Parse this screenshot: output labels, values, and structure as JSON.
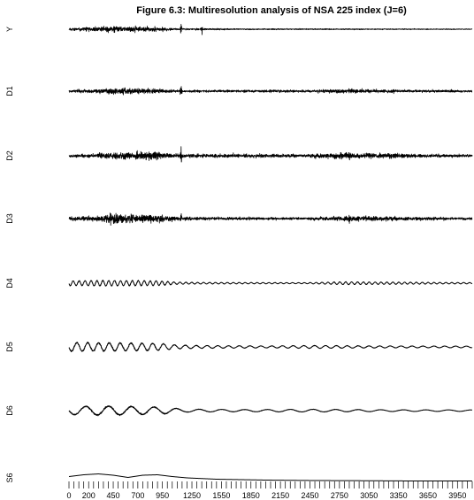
{
  "chart_data": {
    "type": "line",
    "title": "Figure 6.3: Multiresolution analysis of NSA 225 index (J=6)",
    "xlabel": "",
    "ylabel": "",
    "xlim": [
      0,
      4100
    ],
    "x_tick_labels": [
      0,
      200,
      450,
      700,
      950,
      1250,
      1550,
      1850,
      2150,
      2450,
      2750,
      3050,
      3350,
      3650,
      3950
    ],
    "minor_tick_step": 50,
    "series": [
      {
        "name": "Y",
        "kind": "noise",
        "volatility": [
          [
            0,
            0.6
          ],
          [
            200,
            1.0
          ],
          [
            500,
            1.6
          ],
          [
            900,
            1.0
          ],
          [
            1100,
            0.35
          ],
          [
            1300,
            0.5
          ],
          [
            1800,
            0.3
          ],
          [
            2500,
            0.3
          ],
          [
            3000,
            0.25
          ],
          [
            4100,
            0.2
          ]
        ],
        "bursts": [
          [
            1140,
            2.0
          ],
          [
            1350,
            1.5
          ]
        ]
      },
      {
        "name": "D1",
        "kind": "noise",
        "volatility": [
          [
            0,
            0.6
          ],
          [
            250,
            0.9
          ],
          [
            500,
            1.6
          ],
          [
            900,
            1.2
          ],
          [
            1100,
            0.6
          ],
          [
            2400,
            0.6
          ],
          [
            2800,
            1.0
          ],
          [
            3200,
            0.8
          ],
          [
            3600,
            0.6
          ],
          [
            4100,
            0.55
          ]
        ],
        "bursts": [
          [
            1140,
            3.0
          ],
          [
            2850,
            1.6
          ],
          [
            3300,
            1.2
          ]
        ]
      },
      {
        "name": "D2",
        "kind": "noise",
        "volatility": [
          [
            0,
            0.7
          ],
          [
            250,
            1.0
          ],
          [
            500,
            2.2
          ],
          [
            900,
            1.8
          ],
          [
            1100,
            0.8
          ],
          [
            1200,
            1.0
          ],
          [
            2400,
            0.8
          ],
          [
            2800,
            1.6
          ],
          [
            3300,
            1.2
          ],
          [
            3600,
            0.9
          ],
          [
            4100,
            0.7
          ]
        ],
        "bursts": [
          [
            1140,
            2.8
          ],
          [
            2850,
            2.0
          ]
        ]
      },
      {
        "name": "D3",
        "kind": "noise",
        "volatility": [
          [
            0,
            0.9
          ],
          [
            300,
            1.4
          ],
          [
            450,
            2.6
          ],
          [
            900,
            1.8
          ],
          [
            1100,
            1.0
          ],
          [
            1300,
            0.8
          ],
          [
            2400,
            0.6
          ],
          [
            2800,
            1.4
          ],
          [
            3300,
            1.0
          ],
          [
            4100,
            0.6
          ]
        ],
        "bursts": [
          [
            1140,
            2.4
          ],
          [
            2850,
            1.6
          ]
        ]
      },
      {
        "name": "D4",
        "kind": "wave",
        "period": 60,
        "amplitude": [
          [
            0,
            2.6
          ],
          [
            400,
            3.0
          ],
          [
            900,
            2.6
          ],
          [
            1100,
            1.2
          ],
          [
            1300,
            0.9
          ],
          [
            2400,
            0.6
          ],
          [
            2800,
            1.5
          ],
          [
            3300,
            1.2
          ],
          [
            3700,
            0.9
          ],
          [
            4100,
            0.7
          ]
        ]
      },
      {
        "name": "D5",
        "kind": "wave",
        "period": 110,
        "amplitude": [
          [
            0,
            4.8
          ],
          [
            400,
            4.5
          ],
          [
            900,
            4.0
          ],
          [
            1100,
            2.0
          ],
          [
            1400,
            1.5
          ],
          [
            2000,
            1.1
          ],
          [
            2500,
            1.6
          ],
          [
            3000,
            1.2
          ],
          [
            3500,
            1.0
          ],
          [
            4100,
            0.9
          ]
        ]
      },
      {
        "name": "D6",
        "kind": "wave",
        "period": 230,
        "amplitude": [
          [
            0,
            4.5
          ],
          [
            400,
            5.0
          ],
          [
            900,
            4.0
          ],
          [
            1200,
            1.6
          ],
          [
            1800,
            1.2
          ],
          [
            2500,
            1.5
          ],
          [
            3200,
            1.0
          ],
          [
            4100,
            0.8
          ]
        ]
      },
      {
        "name": "S6",
        "kind": "smooth",
        "points": [
          [
            0,
            -1.5
          ],
          [
            150,
            -3.5
          ],
          [
            300,
            -4.5
          ],
          [
            450,
            -3.0
          ],
          [
            600,
            -0.5
          ],
          [
            750,
            -3.0
          ],
          [
            900,
            -3.5
          ],
          [
            1050,
            -1.5
          ],
          [
            1200,
            0.0
          ],
          [
            1500,
            1.5
          ],
          [
            2000,
            2.5
          ],
          [
            2500,
            3.0
          ],
          [
            3000,
            3.2
          ],
          [
            3500,
            3.5
          ],
          [
            4100,
            3.5
          ]
        ]
      }
    ]
  }
}
